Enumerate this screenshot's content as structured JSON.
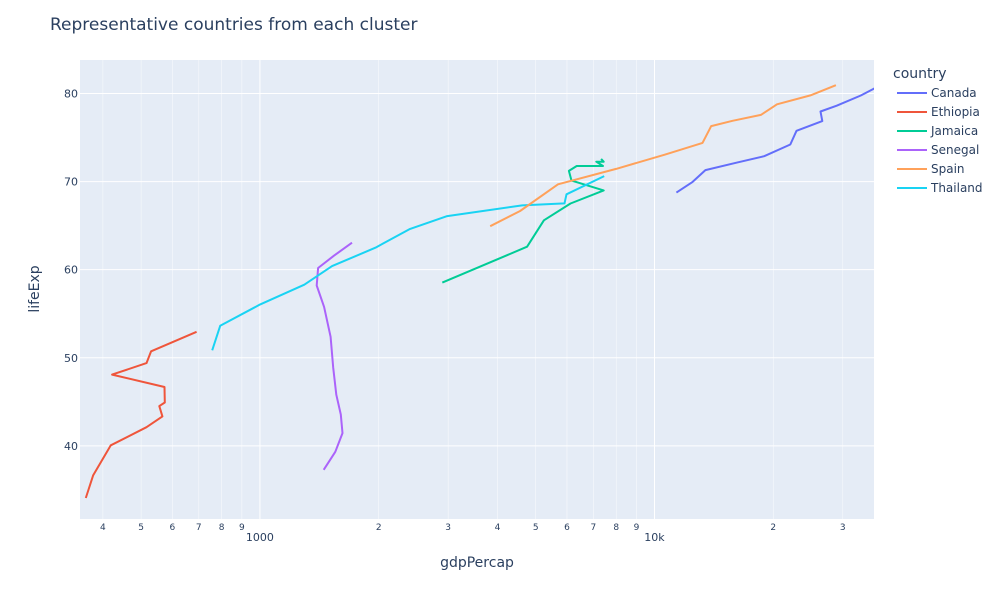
{
  "chart_data": {
    "type": "line",
    "title": "Representative countries from each cluster",
    "xlabel": "gdpPercap",
    "ylabel": "lifeExp",
    "x_scale": "log",
    "xlim": [
      350,
      36000
    ],
    "ylim": [
      31.7,
      83.8
    ],
    "grid": true,
    "legend_title": "country",
    "legend_position": "right",
    "x_ticks_major": [
      {
        "value": 1000,
        "label": "1000"
      },
      {
        "value": 10000,
        "label": "10k"
      }
    ],
    "x_ticks_minor": [
      {
        "value": 400,
        "label": "4"
      },
      {
        "value": 500,
        "label": "5"
      },
      {
        "value": 600,
        "label": "6"
      },
      {
        "value": 700,
        "label": "7"
      },
      {
        "value": 800,
        "label": "8"
      },
      {
        "value": 900,
        "label": "9"
      },
      {
        "value": 2000,
        "label": "2"
      },
      {
        "value": 3000,
        "label": "3"
      },
      {
        "value": 4000,
        "label": "4"
      },
      {
        "value": 5000,
        "label": "5"
      },
      {
        "value": 6000,
        "label": "6"
      },
      {
        "value": 7000,
        "label": "7"
      },
      {
        "value": 8000,
        "label": "8"
      },
      {
        "value": 9000,
        "label": "9"
      },
      {
        "value": 20000,
        "label": "2"
      },
      {
        "value": 30000,
        "label": "3"
      }
    ],
    "y_ticks": [
      {
        "value": 40,
        "label": "40"
      },
      {
        "value": 50,
        "label": "50"
      },
      {
        "value": 60,
        "label": "60"
      },
      {
        "value": 70,
        "label": "70"
      },
      {
        "value": 80,
        "label": "80"
      }
    ],
    "series": [
      {
        "name": "Canada",
        "color": "#636efa",
        "points": [
          [
            11367,
            68.75
          ],
          [
            12490,
            69.96
          ],
          [
            13462,
            71.3
          ],
          [
            16077,
            72.13
          ],
          [
            18971,
            72.88
          ],
          [
            22091,
            74.21
          ],
          [
            22899,
            75.76
          ],
          [
            26627,
            76.86
          ],
          [
            26343,
            77.95
          ],
          [
            28955,
            78.61
          ],
          [
            33329,
            79.77
          ],
          [
            36319,
            80.65
          ]
        ]
      },
      {
        "name": "Ethiopia",
        "color": "#ef553b",
        "points": [
          [
            362,
            34.08
          ],
          [
            378,
            36.67
          ],
          [
            419,
            40.06
          ],
          [
            516,
            42.12
          ],
          [
            566,
            43.35
          ],
          [
            556,
            44.51
          ],
          [
            574,
            44.92
          ],
          [
            573,
            46.68
          ],
          [
            422,
            48.09
          ],
          [
            516,
            49.4
          ],
          [
            530,
            50.73
          ],
          [
            691,
            52.95
          ]
        ]
      },
      {
        "name": "Jamaica",
        "color": "#00cc96",
        "points": [
          [
            2899,
            58.53
          ],
          [
            4756,
            62.61
          ],
          [
            5246,
            65.61
          ],
          [
            6124,
            67.51
          ],
          [
            7434,
            69.0
          ],
          [
            6160,
            70.11
          ],
          [
            6069,
            71.21
          ],
          [
            6352,
            71.77
          ],
          [
            7405,
            71.77
          ],
          [
            7121,
            72.26
          ],
          [
            7434,
            72.26
          ],
          [
            7321,
            72.57
          ]
        ]
      },
      {
        "name": "Senegal",
        "color": "#ab63fa",
        "points": [
          [
            1451,
            37.28
          ],
          [
            1553,
            39.33
          ],
          [
            1619,
            41.45
          ],
          [
            1603,
            43.56
          ],
          [
            1562,
            45.81
          ],
          [
            1534,
            48.88
          ],
          [
            1511,
            52.38
          ],
          [
            1454,
            55.77
          ],
          [
            1393,
            58.2
          ],
          [
            1404,
            60.19
          ],
          [
            1542,
            61.6
          ],
          [
            1712,
            63.06
          ]
        ]
      },
      {
        "name": "Thailand",
        "color": "#19d3f3",
        "points": [
          [
            757,
            50.85
          ],
          [
            793,
            53.63
          ],
          [
            1002,
            56.06
          ],
          [
            1296,
            58.29
          ],
          [
            1524,
            60.41
          ],
          [
            1962,
            62.49
          ],
          [
            2393,
            64.6
          ],
          [
            2983,
            66.08
          ],
          [
            4617,
            67.3
          ],
          [
            5914,
            67.52
          ],
          [
            5985,
            68.56
          ],
          [
            7458,
            70.62
          ]
        ]
      },
      {
        "name": "Spain",
        "color": "#ffa15a",
        "points": [
          [
            3834,
            64.94
          ],
          [
            4565,
            66.66
          ],
          [
            5694,
            69.69
          ],
          [
            7994,
            71.44
          ],
          [
            10638,
            73.06
          ],
          [
            13236,
            74.39
          ],
          [
            13926,
            76.3
          ],
          [
            15765,
            76.9
          ],
          [
            18604,
            77.57
          ],
          [
            20445,
            78.77
          ],
          [
            24835,
            79.78
          ],
          [
            28821,
            80.94
          ]
        ]
      }
    ],
    "legend_order": [
      "Canada",
      "Ethiopia",
      "Jamaica",
      "Senegal",
      "Spain",
      "Thailand"
    ]
  },
  "style": {
    "plot_bg": "#e5ecf6",
    "grid_color": "#ffffff",
    "text_color": "#2a3f5f"
  }
}
